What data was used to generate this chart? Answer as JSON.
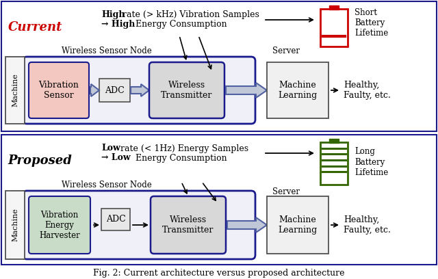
{
  "bg_color": "#ffffff",
  "border_color": "#1a1a8c",
  "title_current": "Current",
  "title_proposed": "Proposed",
  "current_line1_bold": "High",
  "current_line1_rest": " rate (> kHz) Vibration Samples",
  "current_line2_arrow": "→ ",
  "current_line2_bold": "High",
  "current_line2_rest": " Energy Consumption",
  "proposed_line1_bold": "Low",
  "proposed_line1_rest": " rate (< 1Hz) Energy Samples",
  "proposed_line2_arrow": "→ ",
  "proposed_line2_bold": "Low",
  "proposed_line2_rest": " Energy Consumption",
  "machine_label": "Machine",
  "wsn_label": "Wireless Sensor Node",
  "server_label": "Server",
  "vib_sensor_label": "Vibration\nSensor",
  "vib_harvester_label": "Vibration\nEnergy\nHarvester",
  "adc_label": "ADC",
  "wireless_tx_label": "Wireless\nTransmitter",
  "ml_label": "Machine\nLearning",
  "output_label": "Healthy,\nFaulty, etc.",
  "short_battery": "Short\nBattery\nLifetime",
  "long_battery": "Long\nBattery\nLifetime",
  "caption": "Fig. 2: Current architecture versus proposed architecture",
  "sensor_fill_current": "#f2c8c0",
  "sensor_fill_proposed": "#c8dcc8",
  "sensor_border_current": "#1a1a8c",
  "sensor_border_proposed": "#1a1a8c",
  "adc_fill": "#e8e8e8",
  "adc_border": "#505050",
  "wsn_fill": "#f0f0f8",
  "wsn_border": "#1a1a8c",
  "tx_fill": "#d8d8d8",
  "tx_border": "#1a1a8c",
  "ml_fill": "#f0f0f0",
  "ml_border": "#505050",
  "machine_fill": "#f5f5f5",
  "machine_border": "#505050",
  "battery_red": "#cc0000",
  "battery_green": "#336600",
  "fat_arrow_color": "#5060a0",
  "fat_arrow_fill": "#c0c8d8",
  "thin_arrow_color": "#000000"
}
